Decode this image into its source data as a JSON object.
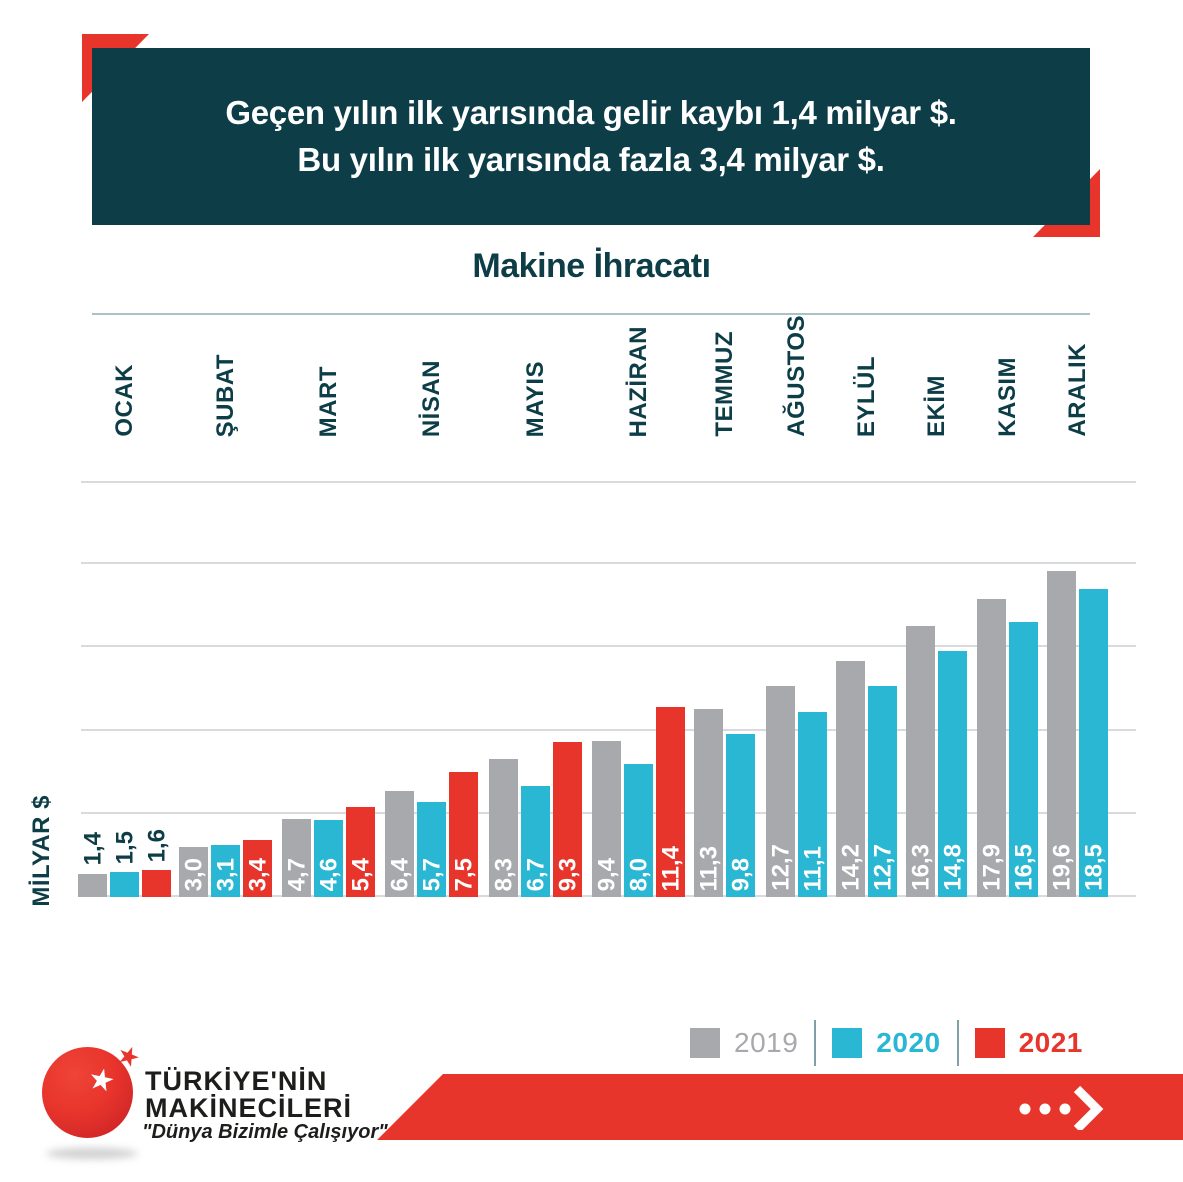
{
  "header": {
    "line1": "Geçen yılın ilk yarısında gelir kaybı 1,4 milyar $.",
    "line2": "Bu yılın ilk yarısında fazla 3,4 milyar $."
  },
  "chart_data": {
    "type": "bar",
    "title": "Makine İhracatı",
    "ylabel": "MİLYAR $",
    "ylim": [
      0,
      25
    ],
    "ytick_step": 5,
    "grid": true,
    "value_label_format": "decimal-comma, rotated 90deg",
    "categories": [
      "OCAK",
      "ŞUBAT",
      "MART",
      "NİSAN",
      "MAYIS",
      "HAZİRAN",
      "TEMMUZ",
      "AĞUSTOS",
      "EYLÜL",
      "EKİM",
      "KASIM",
      "ARALIK"
    ],
    "series": [
      {
        "name": "2019",
        "color": "#a7a9ac",
        "values": [
          1.4,
          3.0,
          4.7,
          6.4,
          8.3,
          9.4,
          11.3,
          12.7,
          14.2,
          16.3,
          17.9,
          19.6
        ]
      },
      {
        "name": "2020",
        "color": "#29b7d3",
        "values": [
          1.5,
          3.1,
          4.6,
          5.7,
          6.7,
          8.0,
          9.8,
          11.1,
          12.7,
          14.8,
          16.5,
          18.5
        ]
      },
      {
        "name": "2021",
        "color": "#e8352c",
        "values": [
          1.6,
          3.4,
          5.4,
          7.5,
          9.3,
          11.4,
          null,
          null,
          null,
          null,
          null,
          null
        ]
      }
    ],
    "legend_position": "bottom-right"
  },
  "legend": {
    "items": [
      {
        "label": "2019",
        "color": "#a7a9ac"
      },
      {
        "label": "2020",
        "color": "#29b7d3"
      },
      {
        "label": "2021",
        "color": "#e8352c"
      }
    ]
  },
  "footer": {
    "brand_line1": "TÜRKİYE'NİN",
    "brand_line2": "MAKİNECİLERİ",
    "slogan": "\"Dünya Bizimle Çalışıyor\"",
    "star_glyph": "★",
    "arrow_icon": "dots-chevron-right"
  },
  "colors": {
    "teal_dark": "#0d3d47",
    "red": "#e8352c",
    "cyan": "#29b7d3",
    "gray": "#a7a9ac",
    "gridline": "#d9dadb"
  }
}
